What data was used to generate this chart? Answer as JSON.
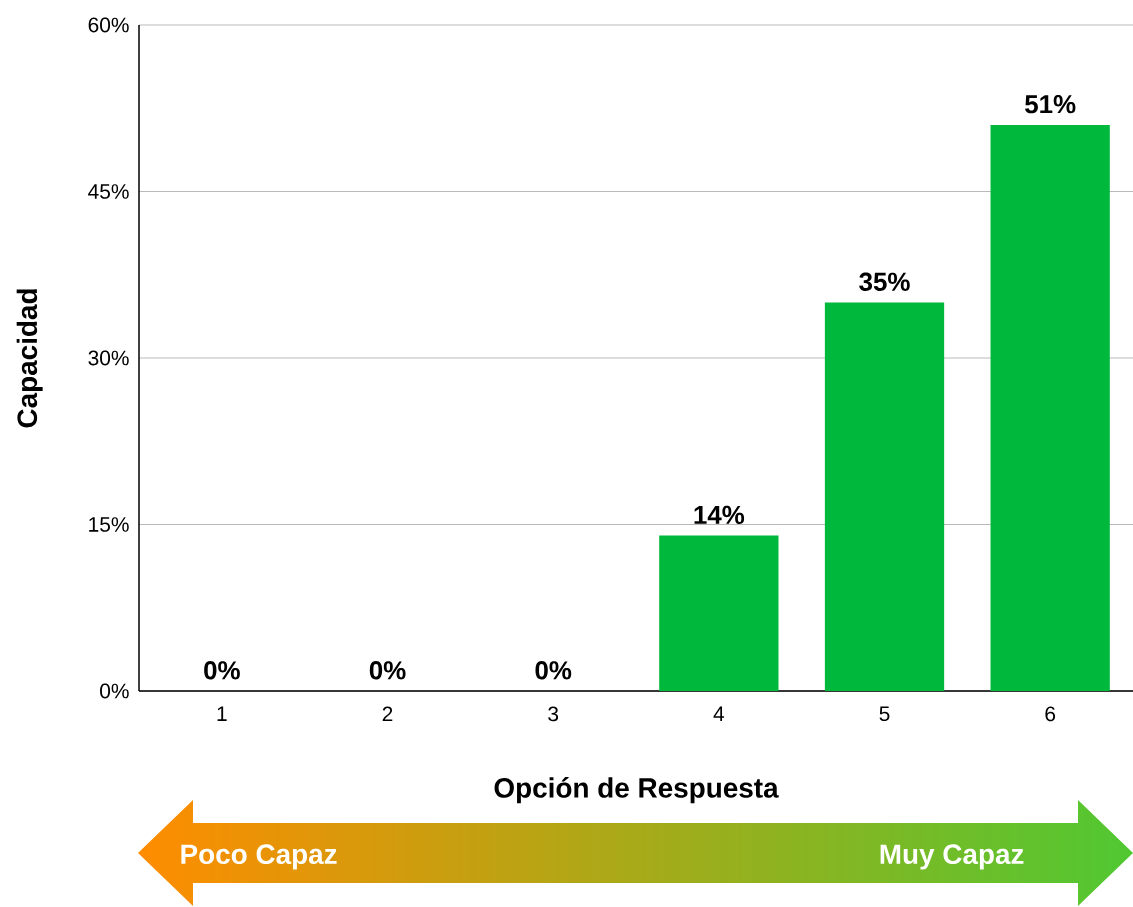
{
  "chart_data": {
    "type": "bar",
    "xlabel": "Opción de Respuesta",
    "ylabel": "Capacidad",
    "categories": [
      "1",
      "2",
      "3",
      "4",
      "5",
      "6"
    ],
    "values": [
      0,
      0,
      0,
      14,
      35,
      51
    ],
    "value_labels": [
      "0%",
      "0%",
      "0%",
      "14%",
      "35%",
      "51%"
    ],
    "color": "#00b83b",
    "ylim": [
      0,
      60
    ],
    "yticks": [
      {
        "value": 0,
        "label": "0%"
      },
      {
        "value": 15,
        "label": "15%"
      },
      {
        "value": 30,
        "label": "30%"
      },
      {
        "value": 45,
        "label": "45%"
      },
      {
        "value": 60,
        "label": "60%"
      }
    ],
    "grid": "y",
    "annotations": [
      "Poco Capaz",
      "Muy Capaz"
    ]
  }
}
